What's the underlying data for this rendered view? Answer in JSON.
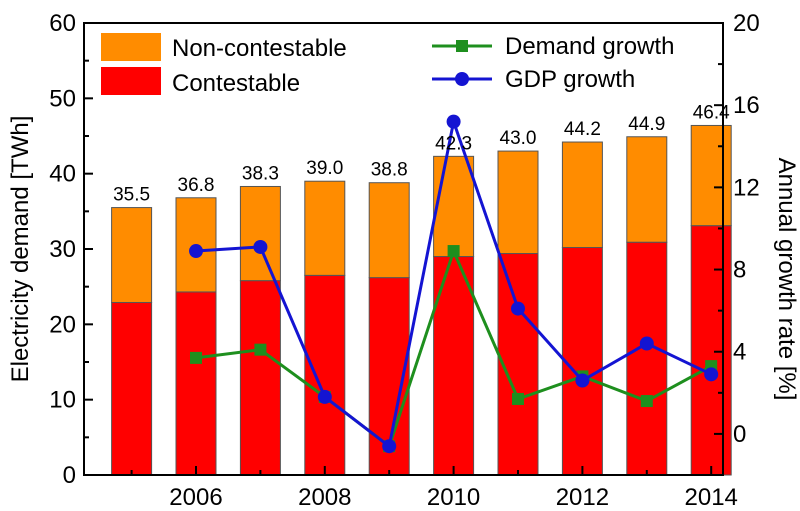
{
  "chart_data": {
    "type": "bar",
    "stacked": true,
    "categories": [
      "2005",
      "2006",
      "2007",
      "2008",
      "2009",
      "2010",
      "2011",
      "2012",
      "2013",
      "2014"
    ],
    "x_tick_labels": [
      "2006",
      "2008",
      "2010",
      "2012",
      "2014"
    ],
    "ylabel": "Electricity demand [TWh]",
    "y2label": "Annual growth rate [%]",
    "ylim": [
      0,
      60
    ],
    "y_ticks": [
      0,
      10,
      20,
      30,
      40,
      50,
      60
    ],
    "y2lim": [
      -2,
      20
    ],
    "y2_ticks": [
      0,
      4,
      8,
      12,
      16,
      20
    ],
    "grid": false,
    "legend_position": "top",
    "bar_series": [
      {
        "name": "Contestable",
        "color": "#ff0000",
        "values": [
          22.9,
          24.3,
          25.8,
          26.5,
          26.2,
          29.0,
          29.4,
          30.2,
          30.9,
          33.1
        ]
      },
      {
        "name": "Non-contestable",
        "color": "#ff8c00",
        "values": [
          12.6,
          12.5,
          12.5,
          12.5,
          12.6,
          13.3,
          13.6,
          14.0,
          14.0,
          13.3
        ]
      }
    ],
    "total_labels": [
      "35.5",
      "36.8",
      "38.3",
      "39.0",
      "38.8",
      "42.3",
      "43.0",
      "44.2",
      "44.9",
      "46.4"
    ],
    "line_series": [
      {
        "name": "Demand growth",
        "color": "#1e8f1e",
        "marker": "square",
        "x": [
          "2006",
          "2007",
          "2008",
          "2009",
          "2010",
          "2011",
          "2012",
          "2013",
          "2014"
        ],
        "values": [
          3.7,
          4.1,
          1.8,
          -0.6,
          8.9,
          1.7,
          2.8,
          1.6,
          3.3
        ]
      },
      {
        "name": "GDP growth",
        "color": "#1414d2",
        "marker": "circle",
        "x": [
          "2006",
          "2007",
          "2008",
          "2009",
          "2010",
          "2011",
          "2012",
          "2013",
          "2014"
        ],
        "values": [
          8.9,
          9.1,
          1.8,
          -0.6,
          15.2,
          6.1,
          2.6,
          4.4,
          2.9
        ]
      }
    ]
  }
}
